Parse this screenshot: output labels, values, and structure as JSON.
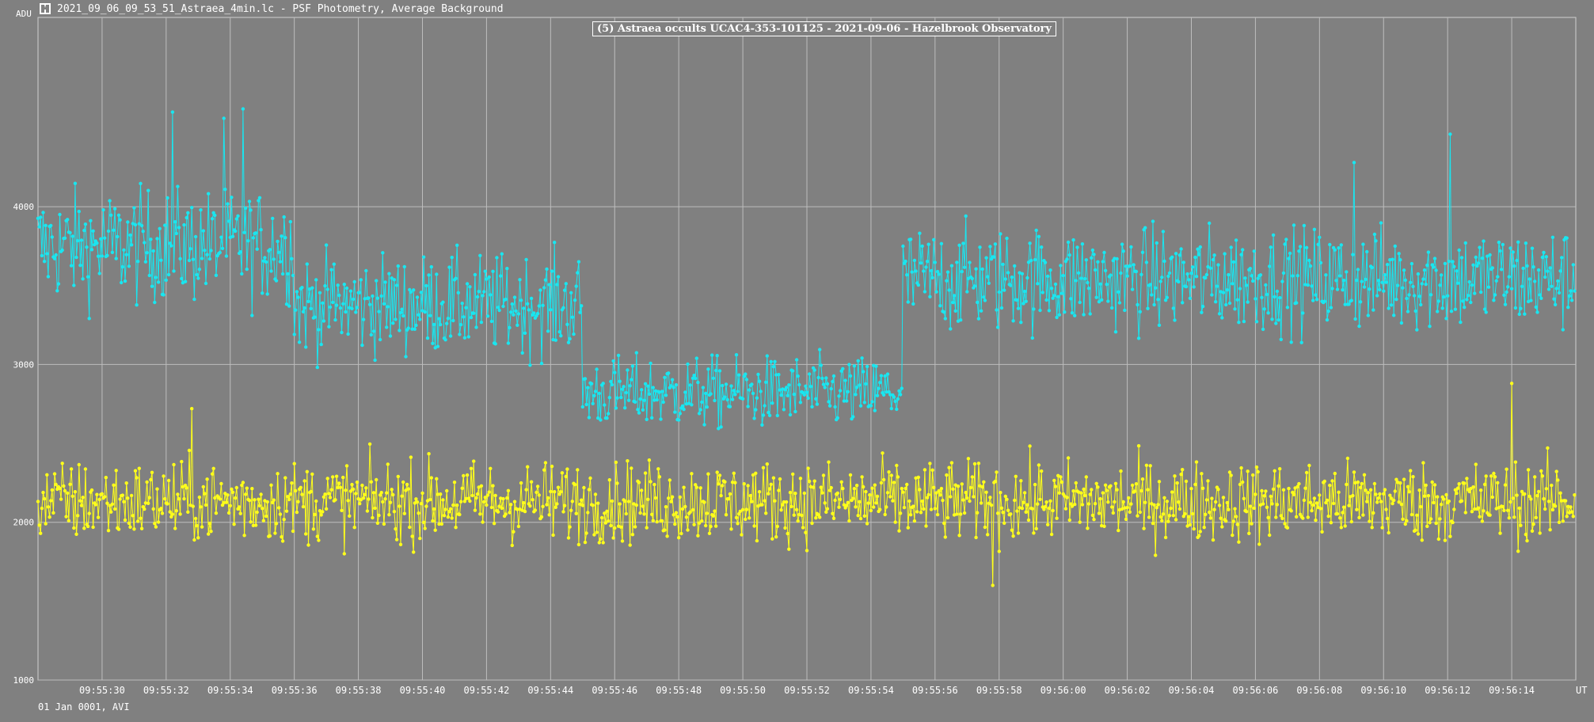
{
  "window": {
    "title": "2021_09_06_09_53_51_Astraea_4min.lc - PSF Photometry, Average Background"
  },
  "footer": {
    "text": "01 Jan 0001, AVI"
  },
  "colors": {
    "background": "#808080",
    "grid": "#bdbdbd",
    "target": "#19e6f0",
    "comparison": "#ffff1a",
    "text": "#ffffff"
  },
  "chart_data": {
    "type": "line",
    "title": "(5) Astraea occults UCAC4-353-101125 - 2021-09-06 - Hazelbrook Observatory",
    "ylabel": "ADU",
    "xlabel": "UT",
    "ylim": [
      1000,
      4200
    ],
    "xlim_seconds": [
      28,
      76
    ],
    "grid": true,
    "y_ticks": [
      "1000",
      "2000",
      "3000",
      "4000"
    ],
    "x_ticks": [
      "09:55:30",
      "09:55:32",
      "09:55:34",
      "09:55:36",
      "09:55:38",
      "09:55:40",
      "09:55:42",
      "09:55:44",
      "09:55:46",
      "09:55:48",
      "09:55:50",
      "09:55:52",
      "09:55:54",
      "09:55:56",
      "09:55:58",
      "09:56:00",
      "09:56:02",
      "09:56:04",
      "09:56:06",
      "09:56:08",
      "09:56:10",
      "09:56:12",
      "09:56:14"
    ],
    "series": [
      {
        "name": "",
        "color": "#19e6f0",
        "points_per_second": 25,
        "segments": [
          {
            "from": "09:55:28",
            "to": "09:55:36",
            "mean": 3750,
            "noise": 250
          },
          {
            "from": "09:55:36",
            "to": "09:55:45",
            "mean": 3380,
            "noise": 220
          },
          {
            "from": "09:55:45",
            "to": "09:55:55",
            "mean": 2820,
            "noise": 160
          },
          {
            "from": "09:55:55",
            "to": "09:56:16",
            "mean": 3540,
            "noise": 230
          }
        ],
        "peaks": [
          [
            "09:55:32.2",
            4600
          ],
          [
            "09:55:33.8",
            4560
          ],
          [
            "09:55:34.4",
            4620
          ],
          [
            "09:56:09.1",
            4280
          ],
          [
            "09:56:12.1",
            4460
          ]
        ]
      },
      {
        "name": "",
        "color": "#ffff1a",
        "points_per_second": 25,
        "segments": [
          {
            "from": "09:55:28",
            "to": "09:56:16",
            "mean": 2130,
            "noise": 180
          }
        ],
        "peaks": [
          [
            "09:55:32.8",
            2720
          ],
          [
            "09:56:14.0",
            2880
          ],
          [
            "09:55:57.8",
            1600
          ]
        ]
      }
    ]
  }
}
